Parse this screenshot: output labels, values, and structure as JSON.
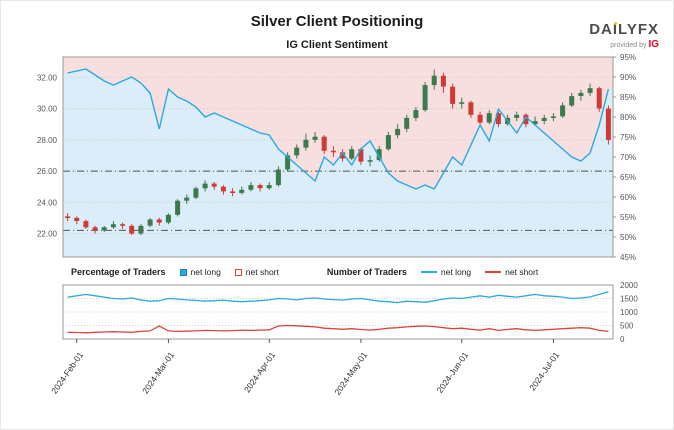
{
  "header": {
    "title": "Silver Client Positioning",
    "subtitle": "IG Client Sentiment"
  },
  "logo": {
    "brand": "DAILYFX",
    "provided_by": "provided by",
    "ig": "IG"
  },
  "legend": {
    "pct_title": "Percentage of Traders",
    "pct_net_long": "net long",
    "pct_net_short": "net short",
    "num_title": "Number of Traders",
    "num_net_long": "net long",
    "num_net_short": "net short"
  },
  "colors": {
    "blue": "#2ba8e0",
    "blue_dark": "#1d83b4",
    "red": "#d9453c",
    "candle_up": "#3c7a4e",
    "candle_down": "#cc3b36",
    "bg_pink": "#f7dfdf",
    "bg_blue": "#daedf9",
    "grid": "#cccccc",
    "ref_line": "#555555",
    "frame": "#999999",
    "accent_yellow": "#f0c419",
    "ig_red": "#e4002b"
  },
  "chart_data": [
    {
      "type": "candlestick+line",
      "title": "Silver price with % of IG clients net long",
      "price_range": [
        20.5,
        33.3
      ],
      "left_axis": {
        "ticks": [
          22,
          24,
          26,
          28,
          30,
          32
        ]
      },
      "right_axis": {
        "min": 45,
        "max": 95,
        "ticks": [
          45,
          50,
          55,
          60,
          65,
          70,
          75,
          80,
          85,
          90,
          95
        ],
        "unit": "%"
      },
      "reference_lines": [
        26.0,
        22.2
      ],
      "x_ticks": [
        {
          "index": 1,
          "label": "2024-Feb-01"
        },
        {
          "index": 11,
          "label": "2024-Mar-01"
        },
        {
          "index": 22,
          "label": "2024-Apr-01"
        },
        {
          "index": 32,
          "label": "2024-May-01"
        },
        {
          "index": 43,
          "label": "2024-Jun-01"
        },
        {
          "index": 53,
          "label": "2024-Jul-01"
        }
      ],
      "candles": [
        [
          23.1,
          23.3,
          22.8,
          23.0
        ],
        [
          23.0,
          23.1,
          22.6,
          22.8
        ],
        [
          22.8,
          22.9,
          22.3,
          22.4
        ],
        [
          22.4,
          22.5,
          22.0,
          22.2
        ],
        [
          22.2,
          22.5,
          22.1,
          22.4
        ],
        [
          22.4,
          22.8,
          22.3,
          22.6
        ],
        [
          22.6,
          22.7,
          22.3,
          22.5
        ],
        [
          22.5,
          22.6,
          21.9,
          22.0
        ],
        [
          22.0,
          22.6,
          21.9,
          22.5
        ],
        [
          22.5,
          23.0,
          22.4,
          22.9
        ],
        [
          22.9,
          23.0,
          22.5,
          22.7
        ],
        [
          22.7,
          23.3,
          22.6,
          23.2
        ],
        [
          23.2,
          24.2,
          23.1,
          24.1
        ],
        [
          24.1,
          24.5,
          23.9,
          24.3
        ],
        [
          24.3,
          25.0,
          24.2,
          24.9
        ],
        [
          24.9,
          25.4,
          24.7,
          25.2
        ],
        [
          25.2,
          25.3,
          24.8,
          25.0
        ],
        [
          25.0,
          25.1,
          24.5,
          24.7
        ],
        [
          24.7,
          24.9,
          24.4,
          24.6
        ],
        [
          24.6,
          25.0,
          24.5,
          24.8
        ],
        [
          24.8,
          25.3,
          24.7,
          25.1
        ],
        [
          25.1,
          25.2,
          24.7,
          24.9
        ],
        [
          24.9,
          25.3,
          24.8,
          25.1
        ],
        [
          25.1,
          26.3,
          25.0,
          26.1
        ],
        [
          26.1,
          27.2,
          26.0,
          27.0
        ],
        [
          27.0,
          27.7,
          26.8,
          27.5
        ],
        [
          27.5,
          28.4,
          27.3,
          28.0
        ],
        [
          28.0,
          28.5,
          27.8,
          28.2
        ],
        [
          28.2,
          28.3,
          27.1,
          27.3
        ],
        [
          27.3,
          27.6,
          26.9,
          27.2
        ],
        [
          27.2,
          27.4,
          26.6,
          26.8
        ],
        [
          26.8,
          27.6,
          26.7,
          27.4
        ],
        [
          27.4,
          27.5,
          26.4,
          26.6
        ],
        [
          26.6,
          27.0,
          26.3,
          26.7
        ],
        [
          26.7,
          27.6,
          26.6,
          27.4
        ],
        [
          27.4,
          28.5,
          27.3,
          28.3
        ],
        [
          28.3,
          29.0,
          28.1,
          28.7
        ],
        [
          28.7,
          29.6,
          28.5,
          29.4
        ],
        [
          29.4,
          30.1,
          29.2,
          29.9
        ],
        [
          29.9,
          31.7,
          29.8,
          31.5
        ],
        [
          31.5,
          32.5,
          31.2,
          32.1
        ],
        [
          32.1,
          32.3,
          31.0,
          31.4
        ],
        [
          31.4,
          31.6,
          30.0,
          30.3
        ],
        [
          30.3,
          30.7,
          30.0,
          30.4
        ],
        [
          30.4,
          30.5,
          29.4,
          29.6
        ],
        [
          29.6,
          29.8,
          28.9,
          29.1
        ],
        [
          29.1,
          29.9,
          29.0,
          29.7
        ],
        [
          29.7,
          29.8,
          28.8,
          29.0
        ],
        [
          29.0,
          29.6,
          28.9,
          29.4
        ],
        [
          29.4,
          29.8,
          29.2,
          29.6
        ],
        [
          29.6,
          29.7,
          28.8,
          29.0
        ],
        [
          29.0,
          29.5,
          28.9,
          29.2
        ],
        [
          29.2,
          29.6,
          29.0,
          29.4
        ],
        [
          29.4,
          29.7,
          29.2,
          29.5
        ],
        [
          29.5,
          30.4,
          29.4,
          30.2
        ],
        [
          30.2,
          31.0,
          30.1,
          30.8
        ],
        [
          30.8,
          31.2,
          30.5,
          31.0
        ],
        [
          31.0,
          31.6,
          30.8,
          31.3
        ],
        [
          31.3,
          31.4,
          29.8,
          30.0
        ],
        [
          30.0,
          30.2,
          27.7,
          28.0
        ]
      ],
      "sentiment_pct": [
        91,
        91.5,
        92,
        90.5,
        89,
        88,
        89,
        90,
        88.5,
        86,
        77,
        87,
        85,
        84,
        82.5,
        80,
        81,
        80,
        79,
        78,
        77,
        76,
        75.5,
        72,
        70,
        68,
        66,
        64,
        70,
        68,
        71,
        68,
        72,
        74,
        70,
        66,
        64,
        63,
        62,
        63,
        62,
        66,
        70,
        68,
        73,
        78,
        74,
        82,
        79,
        76,
        80,
        78,
        76,
        74,
        72,
        70,
        69,
        71,
        78,
        87
      ]
    },
    {
      "type": "line",
      "title": "Number of Traders",
      "right_axis": {
        "min": 0,
        "max": 2000,
        "ticks": [
          0,
          500,
          1000,
          1500,
          2000
        ]
      },
      "series": [
        {
          "name": "net long",
          "color_key": "blue",
          "values": [
            1550,
            1600,
            1650,
            1600,
            1550,
            1500,
            1480,
            1520,
            1450,
            1400,
            1420,
            1500,
            1480,
            1450,
            1430,
            1400,
            1420,
            1440,
            1400,
            1380,
            1400,
            1420,
            1450,
            1500,
            1480,
            1450,
            1500,
            1520,
            1480,
            1460,
            1440,
            1480,
            1500,
            1450,
            1400,
            1380,
            1350,
            1400,
            1380,
            1360,
            1420,
            1480,
            1520,
            1500,
            1550,
            1600,
            1550,
            1620,
            1580,
            1550,
            1600,
            1650,
            1600,
            1580,
            1550,
            1500,
            1520,
            1560,
            1650,
            1750
          ]
        },
        {
          "name": "net short",
          "color_key": "red",
          "values": [
            250,
            240,
            230,
            250,
            260,
            270,
            260,
            250,
            280,
            300,
            480,
            300,
            280,
            290,
            300,
            320,
            310,
            300,
            310,
            330,
            320,
            330,
            340,
            480,
            500,
            490,
            470,
            450,
            400,
            380,
            360,
            380,
            350,
            330,
            360,
            400,
            420,
            450,
            470,
            480,
            460,
            420,
            380,
            400,
            360,
            330,
            380,
            320,
            350,
            380,
            340,
            320,
            340,
            360,
            380,
            400,
            420,
            400,
            320,
            280
          ]
        }
      ]
    }
  ]
}
